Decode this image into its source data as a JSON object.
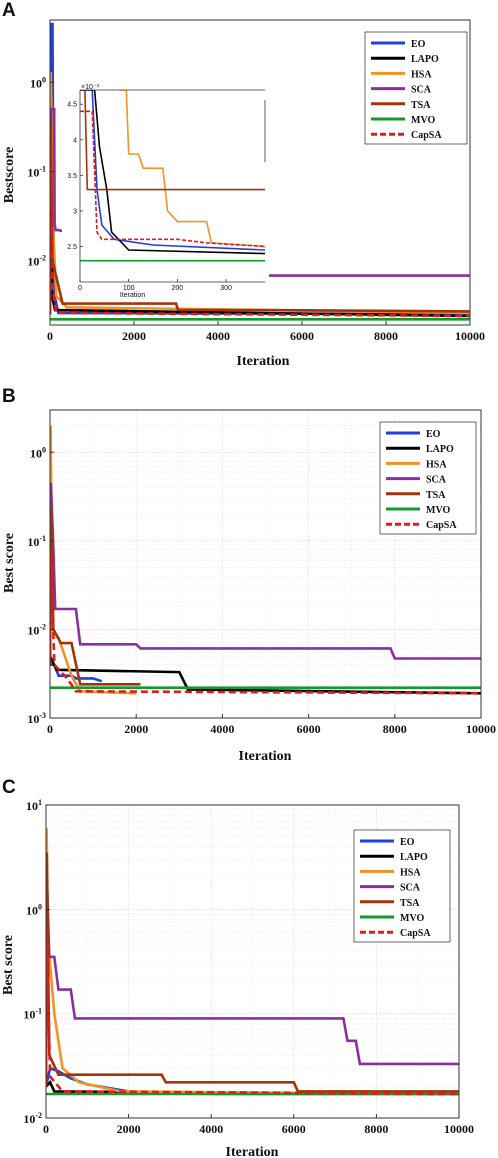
{
  "colors": {
    "EO": "#1f3fe0",
    "LAPO": "#000000",
    "HSA": "#f39322",
    "SCA": "#8a2fa0",
    "TSA": "#a0350c",
    "MVO": "#159a2c",
    "CapSA": "#e01b1b"
  },
  "chart_data": [
    {
      "type": "line",
      "panel": "A",
      "xlabel": "Iteration",
      "ylabel": "Bestscore",
      "xlim": [
        0,
        10000
      ],
      "ylim": [
        0.0019,
        5
      ],
      "y_scale": "log",
      "grid": false,
      "legend_position": "top-right",
      "x_ticks": [
        "0",
        "2000",
        "4000",
        "6000",
        "8000",
        "10000"
      ],
      "y_ticks": [
        {
          "v": 1,
          "label": "10^0"
        },
        {
          "v": 0.1,
          "label": "10^-1"
        },
        {
          "v": 0.01,
          "label": "10^-2"
        }
      ],
      "series": [
        {
          "name": "EO",
          "dash": false,
          "points": [
            [
              0,
              0.0025
            ],
            [
              30,
              4.5
            ],
            [
              60,
              4.5
            ],
            [
              80,
              0.02
            ],
            [
              110,
              0.004
            ],
            [
              200,
              0.0026
            ],
            [
              10000,
              0.0025
            ]
          ]
        },
        {
          "name": "LAPO",
          "dash": false,
          "points": [
            [
              0,
              0.0025
            ],
            [
              20,
              1.0
            ],
            [
              50,
              0.004
            ],
            [
              120,
              0.0028
            ],
            [
              10000,
              0.0024
            ]
          ]
        },
        {
          "name": "HSA",
          "dash": false,
          "points": [
            [
              0,
              0.0025
            ],
            [
              20,
              1.3
            ],
            [
              80,
              0.02
            ],
            [
              150,
              0.004
            ],
            [
              400,
              0.003
            ],
            [
              10000,
              0.0026
            ]
          ]
        },
        {
          "name": "SCA",
          "dash": false,
          "points": [
            [
              0,
              0.0025
            ],
            [
              25,
              0.5
            ],
            [
              100,
              0.5
            ],
            [
              110,
              0.027
            ],
            [
              130,
              0.022
            ],
            [
              200,
              0.022
            ],
            [
              5050,
              0.0068
            ],
            [
              10000,
              0.0068
            ]
          ]
        },
        {
          "name": "TSA",
          "dash": false,
          "points": [
            [
              0,
              0.0025
            ],
            [
              20,
              0.4
            ],
            [
              60,
              0.01
            ],
            [
              300,
              0.0033
            ],
            [
              3000,
              0.0033
            ],
            [
              3050,
              0.0028
            ],
            [
              5050,
              0.0028
            ],
            [
              10000,
              0.0027
            ]
          ]
        },
        {
          "name": "MVO",
          "dash": false,
          "points": [
            [
              0,
              0.0022
            ],
            [
              10000,
              0.0022
            ]
          ]
        },
        {
          "name": "CapSA",
          "dash": true,
          "points": [
            [
              0,
              0.0025
            ],
            [
              15,
              0.2
            ],
            [
              60,
              0.005
            ],
            [
              150,
              0.0026
            ],
            [
              10000,
              0.0024
            ]
          ]
        }
      ],
      "inset": {
        "xlabel": "Iteration",
        "y_exp_label": "×10^-3",
        "xlim": [
          0,
          380
        ],
        "ylim": [
          2.0,
          4.7
        ],
        "x_ticks": [
          "0",
          "100",
          "200",
          "300"
        ],
        "y_ticks": [
          "2.5",
          "3",
          "3.5",
          "4",
          "4.5"
        ],
        "series": [
          {
            "name": "EO",
            "points": [
              [
                0,
                4.7
              ],
              [
                25,
                4.7
              ],
              [
                35,
                3.3
              ],
              [
                45,
                2.8
              ],
              [
                70,
                2.6
              ],
              [
                150,
                2.52
              ],
              [
                380,
                2.45
              ]
            ]
          },
          {
            "name": "LAPO",
            "points": [
              [
                0,
                4.7
              ],
              [
                30,
                4.7
              ],
              [
                40,
                3.9
              ],
              [
                55,
                3.3
              ],
              [
                65,
                2.7
              ],
              [
                100,
                2.45
              ],
              [
                380,
                2.4
              ]
            ]
          },
          {
            "name": "HSA",
            "points": [
              [
                80,
                4.7
              ],
              [
                95,
                4.7
              ],
              [
                100,
                3.8
              ],
              [
                120,
                3.8
              ],
              [
                130,
                3.6
              ],
              [
                170,
                3.6
              ],
              [
                180,
                3.0
              ],
              [
                200,
                2.85
              ],
              [
                260,
                2.85
              ],
              [
                270,
                2.55
              ],
              [
                380,
                2.5
              ]
            ]
          },
          {
            "name": "TSA",
            "points": [
              [
                10,
                4.7
              ],
              [
                15,
                3.3
              ],
              [
                380,
                3.3
              ]
            ]
          },
          {
            "name": "MVO",
            "points": [
              [
                0,
                2.3
              ],
              [
                380,
                2.3
              ]
            ]
          },
          {
            "name": "CapSA",
            "points": [
              [
                0,
                4.4
              ],
              [
                25,
                4.4
              ],
              [
                35,
                2.7
              ],
              [
                45,
                2.6
              ],
              [
                200,
                2.6
              ],
              [
                260,
                2.55
              ],
              [
                380,
                2.5
              ]
            ]
          }
        ]
      }
    },
    {
      "type": "line",
      "panel": "B",
      "xlabel": "Iteration",
      "ylabel": "Best score",
      "xlim": [
        0,
        10000
      ],
      "ylim": [
        0.001,
        3
      ],
      "y_scale": "log",
      "grid": true,
      "legend_position": "top-right",
      "x_ticks": [
        "0",
        "2000",
        "4000",
        "6000",
        "8000",
        "10000"
      ],
      "y_ticks": [
        {
          "v": 1,
          "label": "10^0"
        },
        {
          "v": 0.1,
          "label": "10^-1"
        },
        {
          "v": 0.01,
          "label": "10^-2"
        },
        {
          "v": 0.001,
          "label": "10^-3"
        }
      ],
      "series": [
        {
          "name": "EO",
          "dash": false,
          "points": [
            [
              0,
              0.004
            ],
            [
              100,
              0.004
            ],
            [
              200,
              0.003
            ],
            [
              500,
              0.003
            ],
            [
              600,
              0.0028
            ],
            [
              1000,
              0.0028
            ],
            [
              1200,
              0.0026
            ]
          ]
        },
        {
          "name": "LAPO",
          "dash": false,
          "points": [
            [
              0,
              0.005
            ],
            [
              150,
              0.0035
            ],
            [
              3000,
              0.0033
            ],
            [
              3200,
              0.0021
            ],
            [
              10000,
              0.0019
            ]
          ]
        },
        {
          "name": "HSA",
          "dash": false,
          "points": [
            [
              0,
              0.004
            ],
            [
              15,
              2.0
            ],
            [
              60,
              0.01
            ],
            [
              200,
              0.008
            ],
            [
              500,
              0.003
            ],
            [
              700,
              0.002
            ],
            [
              2000,
              0.0019
            ]
          ]
        },
        {
          "name": "SCA",
          "dash": false,
          "points": [
            [
              0,
              0.004
            ],
            [
              20,
              0.45
            ],
            [
              80,
              0.08
            ],
            [
              120,
              0.017
            ],
            [
              600,
              0.017
            ],
            [
              700,
              0.0068
            ],
            [
              2000,
              0.0068
            ],
            [
              2100,
              0.0061
            ],
            [
              7900,
              0.0061
            ],
            [
              8000,
              0.0047
            ],
            [
              10000,
              0.0047
            ]
          ]
        },
        {
          "name": "TSA",
          "dash": false,
          "points": [
            [
              0,
              0.004
            ],
            [
              20,
              0.25
            ],
            [
              80,
              0.01
            ],
            [
              250,
              0.007
            ],
            [
              500,
              0.007
            ],
            [
              700,
              0.0024
            ],
            [
              2100,
              0.0024
            ]
          ]
        },
        {
          "name": "MVO",
          "dash": false,
          "points": [
            [
              0,
              0.0022
            ],
            [
              10000,
              0.0022
            ]
          ]
        },
        {
          "name": "CapSA",
          "dash": true,
          "points": [
            [
              0,
              0.004
            ],
            [
              20,
              0.08
            ],
            [
              100,
              0.004
            ],
            [
              400,
              0.0028
            ],
            [
              600,
              0.002
            ],
            [
              10000,
              0.0019
            ]
          ]
        }
      ]
    },
    {
      "type": "line",
      "panel": "C",
      "xlabel": "Iteration",
      "ylabel": "Best score",
      "xlim": [
        0,
        10000
      ],
      "ylim": [
        0.01,
        10
      ],
      "y_scale": "log",
      "grid": true,
      "legend_position": "top-right",
      "x_ticks": [
        "0",
        "2000",
        "4000",
        "6000",
        "8000",
        "10000"
      ],
      "y_ticks": [
        {
          "v": 10,
          "label": "10^1"
        },
        {
          "v": 1,
          "label": "10^0"
        },
        {
          "v": 0.1,
          "label": "10^-1"
        },
        {
          "v": 0.01,
          "label": "10^-2"
        }
      ],
      "series": [
        {
          "name": "EO",
          "dash": false,
          "points": [
            [
              0,
              0.02
            ],
            [
              100,
              0.03
            ],
            [
              300,
              0.028
            ],
            [
              600,
              0.024
            ],
            [
              1000,
              0.021
            ],
            [
              2000,
              0.018
            ],
            [
              4000,
              0.017
            ],
            [
              10000,
              0.017
            ]
          ]
        },
        {
          "name": "LAPO",
          "dash": false,
          "points": [
            [
              0,
              0.02
            ],
            [
              100,
              0.022
            ],
            [
              200,
              0.018
            ],
            [
              10000,
              0.017
            ]
          ]
        },
        {
          "name": "HSA",
          "dash": false,
          "points": [
            [
              0,
              0.02
            ],
            [
              15,
              6.0
            ],
            [
              50,
              0.5
            ],
            [
              200,
              0.1
            ],
            [
              400,
              0.03
            ],
            [
              800,
              0.022
            ],
            [
              1800,
              0.018
            ],
            [
              10000,
              0.017
            ]
          ]
        },
        {
          "name": "SCA",
          "dash": false,
          "points": [
            [
              0,
              0.02
            ],
            [
              20,
              2.0
            ],
            [
              80,
              0.35
            ],
            [
              200,
              0.35
            ],
            [
              300,
              0.17
            ],
            [
              600,
              0.17
            ],
            [
              700,
              0.09
            ],
            [
              7200,
              0.09
            ],
            [
              7300,
              0.055
            ],
            [
              7500,
              0.055
            ],
            [
              7600,
              0.033
            ],
            [
              10000,
              0.033
            ]
          ]
        },
        {
          "name": "TSA",
          "dash": false,
          "points": [
            [
              0,
              0.02
            ],
            [
              20,
              3.5
            ],
            [
              80,
              0.04
            ],
            [
              300,
              0.026
            ],
            [
              2800,
              0.026
            ],
            [
              2900,
              0.022
            ],
            [
              6000,
              0.022
            ],
            [
              6100,
              0.018
            ],
            [
              10000,
              0.018
            ]
          ]
        },
        {
          "name": "MVO",
          "dash": false,
          "points": [
            [
              0,
              0.017
            ],
            [
              10000,
              0.017
            ]
          ]
        },
        {
          "name": "CapSA",
          "dash": true,
          "points": [
            [
              0,
              0.02
            ],
            [
              20,
              0.6
            ],
            [
              100,
              0.025
            ],
            [
              400,
              0.018
            ],
            [
              10000,
              0.017
            ]
          ]
        }
      ]
    }
  ],
  "panels": {
    "a": {
      "letter": "A",
      "ylabel": "Bestscore",
      "xlabel": "Iteration",
      "legend": [
        "EO",
        "LAPO",
        "HSA",
        "SCA",
        "TSA",
        "MVO",
        "CapSA"
      ],
      "inset_xlabel": "Iteration",
      "inset_exp": "×10⁻³"
    },
    "b": {
      "letter": "B",
      "ylabel": "Best score",
      "xlabel": "Iteration",
      "legend": [
        "EO",
        "LAPO",
        "HSA",
        "SCA",
        "TSA",
        "MVO",
        "CapSA"
      ]
    },
    "c": {
      "letter": "C",
      "ylabel": "Best score",
      "xlabel": "Iteration",
      "legend": [
        "EO",
        "LAPO",
        "HSA",
        "SCA",
        "TSA",
        "MVO",
        "CapSA"
      ]
    }
  }
}
